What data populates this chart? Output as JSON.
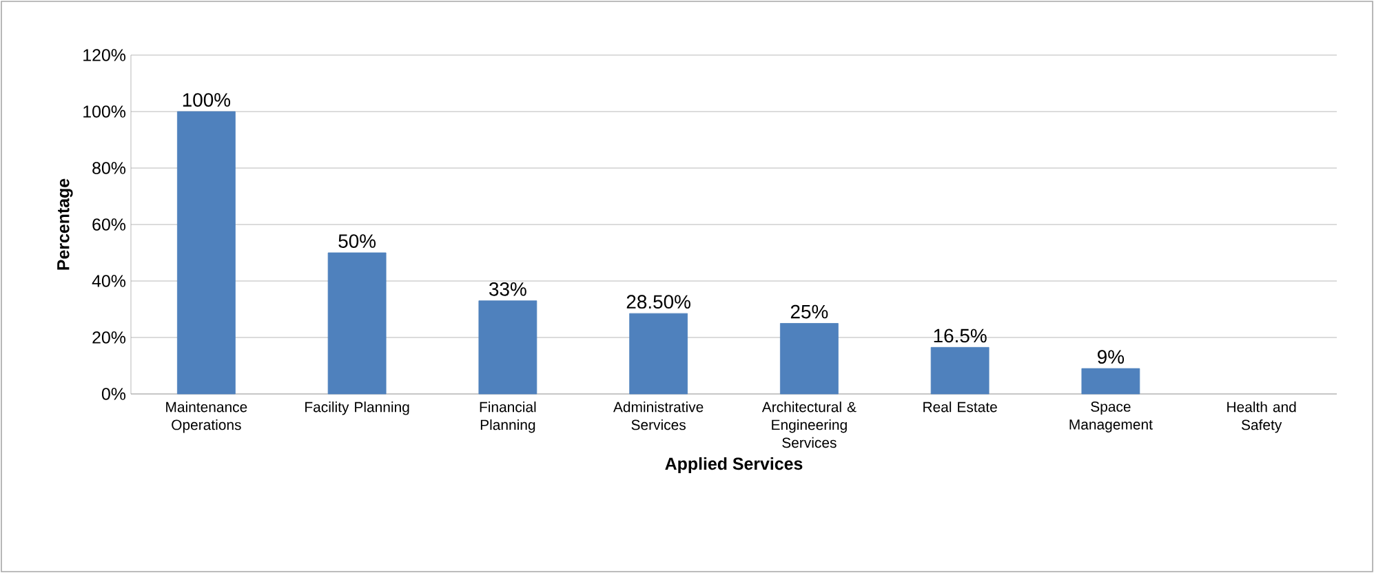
{
  "chart_data": {
    "type": "bar",
    "categories": [
      "Maintenance Operations",
      "Facility Planning",
      "Financial Planning",
      "Administrative Services",
      "Architectural & Engineering Services",
      "Real Estate",
      "Space Management",
      "Health and Safety"
    ],
    "values": [
      100,
      50,
      33,
      28.5,
      25,
      16.5,
      9,
      null
    ],
    "value_labels": [
      "100%",
      "50%",
      "33%",
      "28.50%",
      "25%",
      "16.5%",
      "9%",
      null
    ],
    "color": "#4f81bd",
    "xlabel": "Applied Services",
    "ylabel": "Percentage",
    "ylim": [
      0,
      120
    ],
    "yticks": [
      {
        "value": 0,
        "label": "0%"
      },
      {
        "value": 20,
        "label": "20%"
      },
      {
        "value": 40,
        "label": "40%"
      },
      {
        "value": 60,
        "label": "60%"
      },
      {
        "value": 80,
        "label": "80%"
      },
      {
        "value": 100,
        "label": "100%"
      },
      {
        "value": 120,
        "label": "120%"
      }
    ],
    "grid": "y"
  }
}
